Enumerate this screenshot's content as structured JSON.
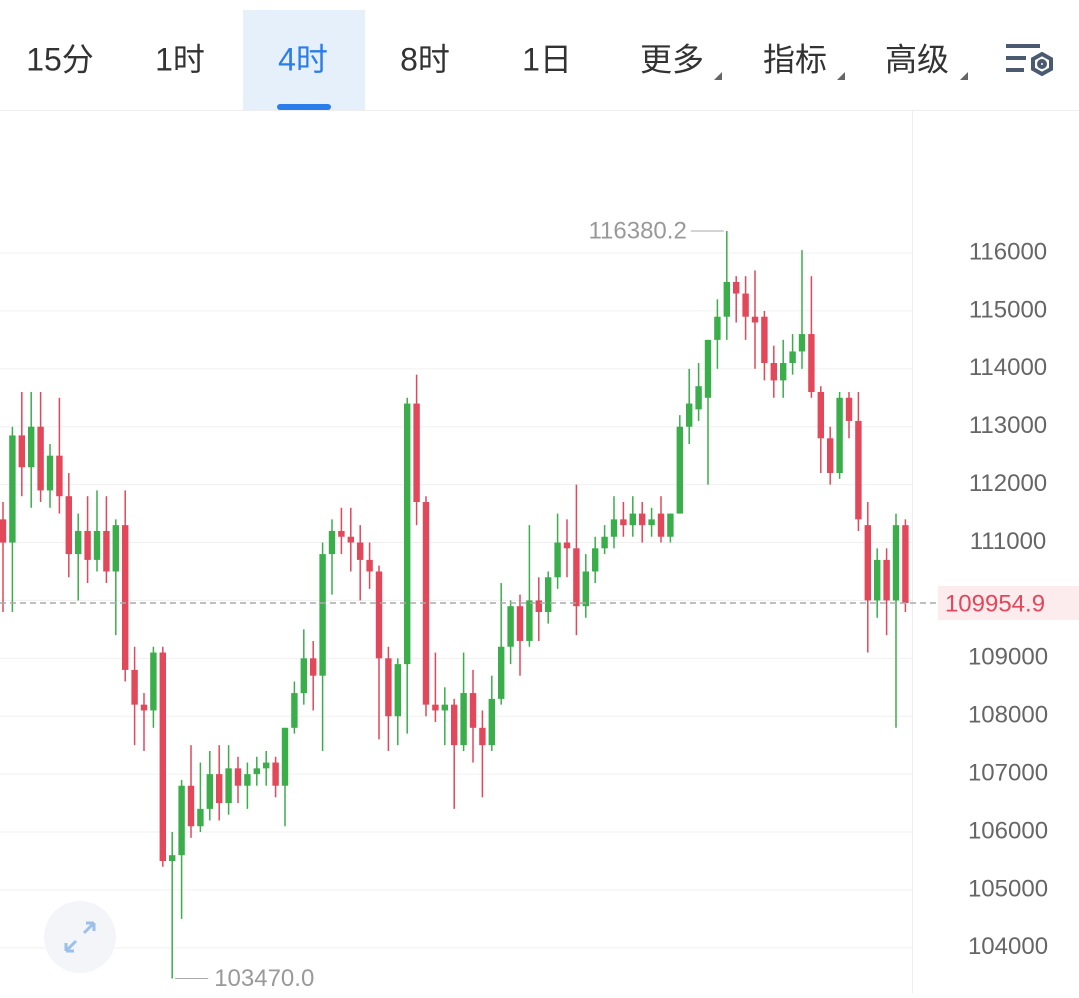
{
  "tabs": [
    "15分",
    "1时",
    "4时",
    "8时",
    "1日",
    "更多",
    "指标",
    "高级"
  ],
  "selected_tab": 2,
  "chart_data": {
    "type": "candlestick",
    "up_color": "#3aae4a",
    "down_color": "#e2475a",
    "open": [
      111400,
      111000,
      112850,
      112300,
      113000,
      111900,
      112500,
      111800,
      110800,
      111200,
      110700,
      111200,
      110500,
      111300,
      108800,
      108200,
      108100,
      109100,
      105500,
      105600,
      106800,
      106100,
      106400,
      107000,
      106500,
      107100,
      106800,
      107000,
      107100,
      107200,
      106800,
      107800,
      108400,
      109000,
      108700,
      110800,
      111200,
      111100,
      111000,
      110700,
      110500,
      109000,
      108000,
      108900,
      113400,
      111700,
      108200,
      108100,
      108200,
      107500,
      108400,
      107800,
      107500,
      108300,
      109200,
      109900,
      109300,
      110000,
      109800,
      110400,
      111000,
      110900,
      109900,
      110500,
      110900,
      111100,
      111400,
      111300,
      111500,
      111300,
      111500,
      111100,
      111500,
      113000,
      113300,
      113500,
      114500,
      114900,
      115500,
      115300,
      114900,
      114900,
      114100,
      113800,
      114100,
      114300,
      114600,
      113600,
      112800,
      112200,
      113500,
      113100,
      111300,
      110000,
      110700,
      110000,
      111300
    ],
    "high": [
      111700,
      113000,
      113600,
      113600,
      113600,
      112700,
      113500,
      112200,
      111500,
      111800,
      111900,
      111800,
      111400,
      111900,
      109200,
      108400,
      109200,
      109200,
      106000,
      106900,
      107500,
      107200,
      107400,
      107500,
      107500,
      107300,
      107200,
      107300,
      107400,
      107300,
      107800,
      108600,
      109500,
      109300,
      111000,
      111400,
      111600,
      111600,
      111300,
      111000,
      110600,
      109200,
      109000,
      113500,
      113900,
      111800,
      109100,
      108500,
      108300,
      109100,
      108800,
      108100,
      108700,
      110300,
      110000,
      110100,
      111300,
      110400,
      110500,
      111500,
      111400,
      112000,
      110800,
      111100,
      111300,
      111800,
      111700,
      111800,
      111700,
      111600,
      111800,
      111500,
      113200,
      114000,
      114100,
      114500,
      115200,
      116380.2,
      115600,
      115600,
      115700,
      115000,
      114400,
      114500,
      114600,
      116050,
      115600,
      113700,
      113000,
      113600,
      113600,
      113600,
      111700,
      110900,
      110900,
      111500,
      111400
    ],
    "low": [
      109800,
      109800,
      111800,
      111600,
      111700,
      111600,
      111500,
      110400,
      110000,
      110300,
      110500,
      110300,
      109400,
      108600,
      107500,
      107400,
      107800,
      105400,
      103470,
      104500,
      105900,
      106000,
      106200,
      106200,
      106300,
      106500,
      106400,
      106800,
      106800,
      106600,
      106100,
      107700,
      108200,
      108100,
      107400,
      110100,
      110800,
      110500,
      110000,
      110200,
      107600,
      107400,
      107500,
      107700,
      111300,
      108000,
      107900,
      107500,
      106400,
      107400,
      107200,
      106600,
      107400,
      108200,
      108900,
      108700,
      109200,
      109300,
      109600,
      110200,
      110400,
      109400,
      109700,
      110300,
      110800,
      110900,
      111100,
      111100,
      111000,
      111100,
      111000,
      111000,
      111500,
      112700,
      113100,
      112000,
      114000,
      114500,
      114800,
      114500,
      114000,
      113800,
      113500,
      113500,
      113900,
      114000,
      113500,
      112200,
      112000,
      112100,
      112800,
      111200,
      109100,
      109700,
      109400,
      107800,
      109800
    ],
    "close": [
      111000,
      112850,
      112300,
      113000,
      111900,
      112500,
      111800,
      110800,
      111200,
      110700,
      111200,
      110500,
      111300,
      108800,
      108200,
      108100,
      109100,
      105500,
      105600,
      106800,
      106100,
      106400,
      107000,
      106500,
      107100,
      106800,
      107000,
      107100,
      107200,
      106800,
      107800,
      108400,
      109000,
      108700,
      110800,
      111200,
      111100,
      111000,
      110700,
      110500,
      109000,
      108000,
      108900,
      113400,
      111700,
      108200,
      108100,
      108200,
      107500,
      108400,
      107800,
      107500,
      108300,
      109200,
      109900,
      109300,
      110000,
      109800,
      110400,
      111000,
      110900,
      109900,
      110500,
      110900,
      111100,
      111400,
      111300,
      111500,
      111300,
      111400,
      111100,
      111500,
      113000,
      113400,
      113700,
      114500,
      114900,
      115500,
      115300,
      114900,
      114800,
      114100,
      113800,
      114100,
      114300,
      114600,
      113600,
      112800,
      112200,
      113500,
      113100,
      111400,
      110000,
      110700,
      110000,
      111300,
      109954.9
    ],
    "ylim": [
      103220,
      118470
    ],
    "yticks": [
      104000,
      105000,
      106000,
      107000,
      108000,
      109000,
      110000,
      111000,
      112000,
      113000,
      114000,
      115000,
      116000
    ],
    "grid": true,
    "max_annotation": 116380.2,
    "min_annotation": {
      "value": 103470,
      "label": "103470.0"
    },
    "last_price": 109954.9
  }
}
